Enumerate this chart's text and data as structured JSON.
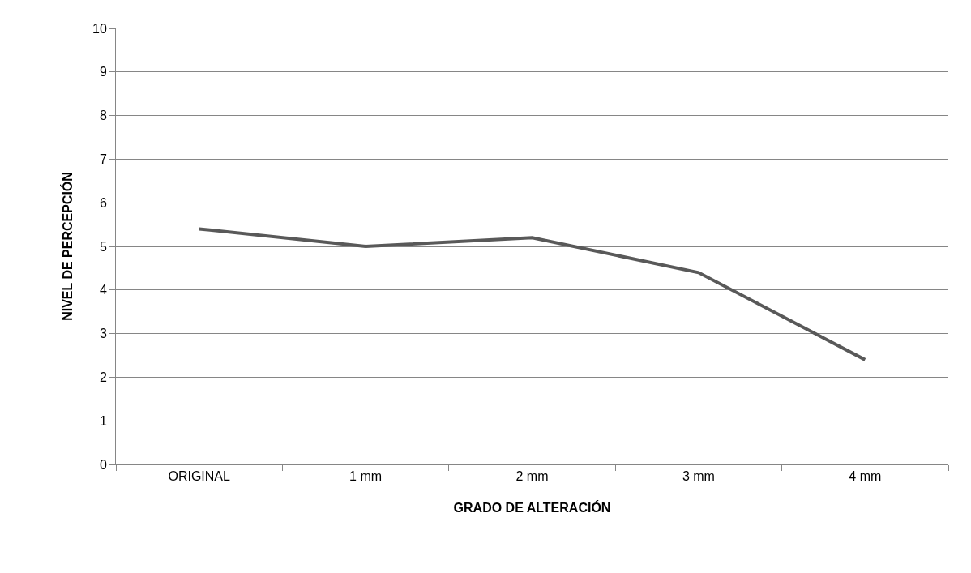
{
  "chart_data": {
    "type": "line",
    "xlabel": "GRADO DE ALTERACIÓN",
    "ylabel": "NIVEL DE PERCEPCIÓN",
    "categories": [
      "ORIGINAL",
      "1 mm",
      "2 mm",
      "3 mm",
      "4 mm"
    ],
    "series": [
      {
        "color": "#595959",
        "values": [
          5.4,
          5.0,
          5.2,
          4.4,
          2.4
        ]
      }
    ],
    "ylim": [
      0,
      10
    ],
    "yticks": [
      0,
      1,
      2,
      3,
      4,
      5,
      6,
      7,
      8,
      9,
      10
    ],
    "grid": "y",
    "marker": "none",
    "line_style": "solid"
  }
}
